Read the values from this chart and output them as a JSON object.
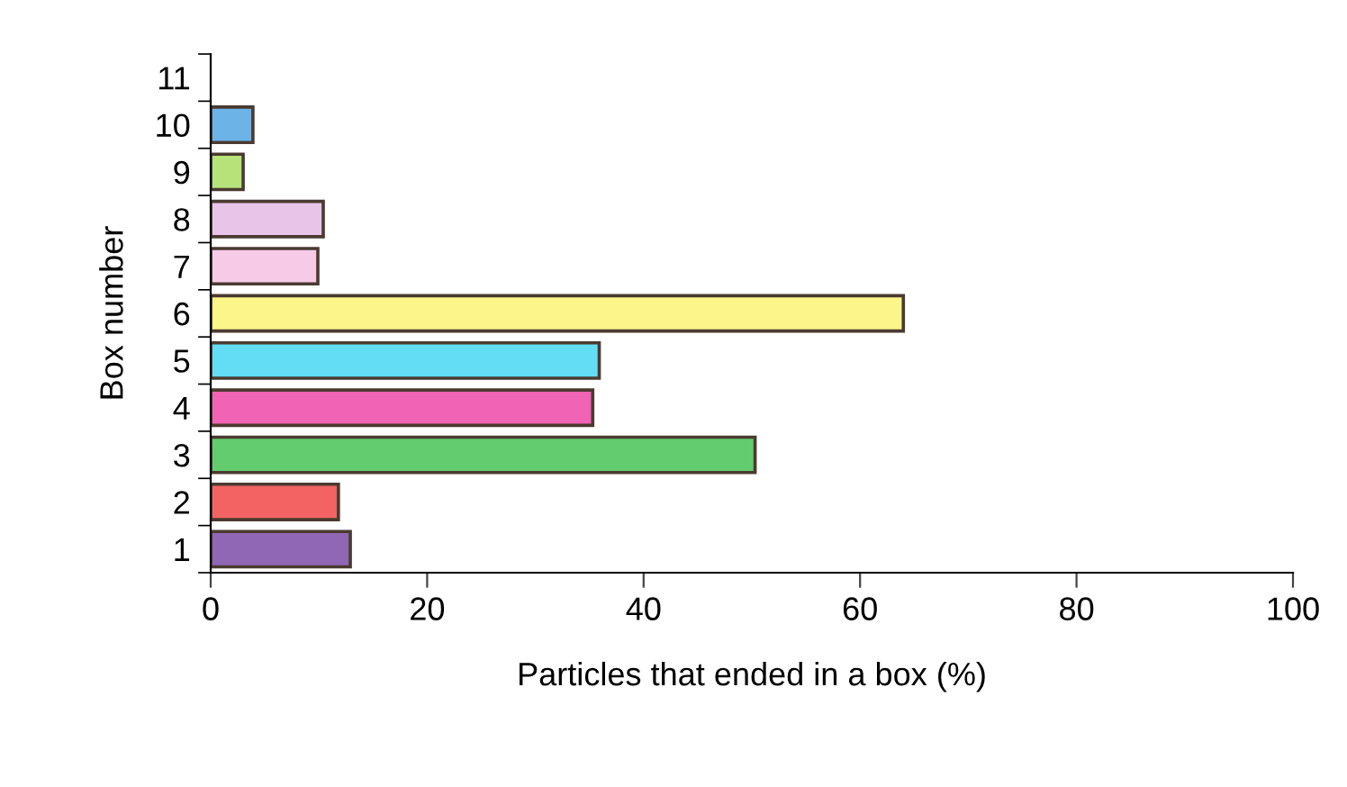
{
  "chart_data": {
    "type": "bar",
    "orientation": "horizontal",
    "ylabel": "Box number",
    "xlabel": "Particles that ended in a box (%)",
    "categories": [
      "11",
      "10",
      "9",
      "8",
      "7",
      "6",
      "5",
      "4",
      "3",
      "2",
      "1"
    ],
    "values": [
      null,
      3.9,
      3.0,
      10.4,
      9.9,
      64.0,
      35.9,
      35.3,
      50.3,
      11.8,
      12.9
    ],
    "colors": [
      "#cccccc",
      "#6cb4e8",
      "#b6e27a",
      "#e8c4e8",
      "#f7cbe8",
      "#fbf58a",
      "#63dcf5",
      "#f063b5",
      "#63cc6f",
      "#f36363",
      "#8f67b5"
    ],
    "xlim": [
      0,
      100
    ],
    "xticks": [
      0,
      20,
      40,
      60,
      80,
      100
    ],
    "grid": false,
    "legend": false
  }
}
